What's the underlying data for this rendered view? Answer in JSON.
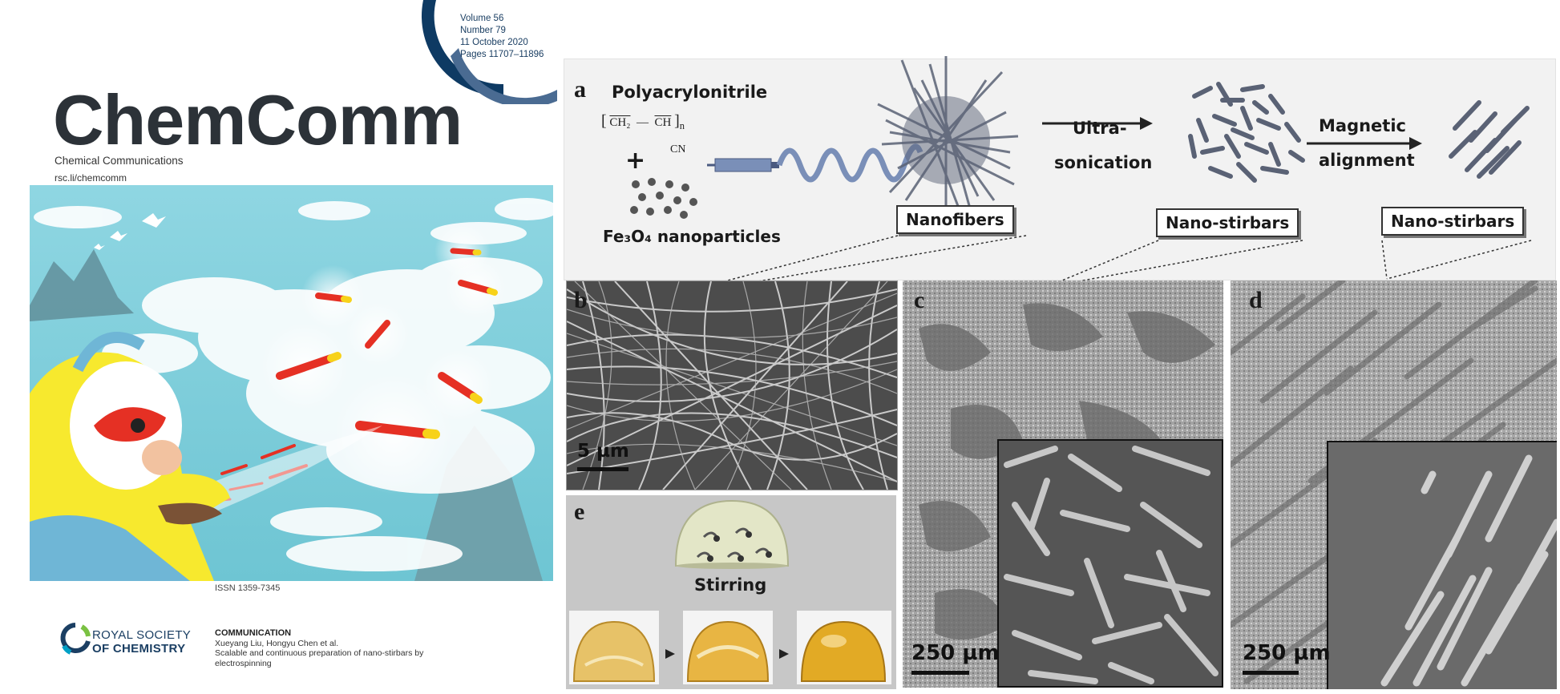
{
  "issue": {
    "volume": "Volume 56",
    "number": "Number 79",
    "date": "11 October 2020",
    "pages": "Pages 11707–11896"
  },
  "journal": {
    "name": "ChemComm",
    "subtitle": "Chemical Communications",
    "url": "rsc.li/chemcomm",
    "issn": "ISSN 1359-7345"
  },
  "publisher": {
    "line1": "ROYAL SOCIETY",
    "line2": "OF CHEMISTRY"
  },
  "article": {
    "type": "COMMUNICATION",
    "authors": "Xueyang Liu, Hongyu Chen et al.",
    "title": "Scalable and continuous preparation of nano-stirbars by electrospinning"
  },
  "figure": {
    "panel_a": {
      "label": "a",
      "polymer": "Polyacrylonitrile",
      "plus": "+",
      "formula_ch2": "CH₂",
      "formula_ch": "CH",
      "formula_cn": "CN",
      "formula_n": "n",
      "nanoparticles": "Fe₃O₄ nanoparticles",
      "step1_line1": "Ultra-",
      "step1_line2": "sonication",
      "step2_line1": "Magnetic",
      "step2_line2": "alignment",
      "box1": "Nanofibers",
      "box2": "Nano-stirbars",
      "box3": "Nano-stirbars"
    },
    "panel_b": {
      "label": "b",
      "scale": "5 µm"
    },
    "panel_c": {
      "label": "c",
      "scale": "250 µm"
    },
    "panel_d": {
      "label": "d",
      "scale": "250 µm"
    },
    "panel_e": {
      "label": "e",
      "caption": "Stirring"
    },
    "colors": {
      "rsc_blue": "#1b3f63",
      "stirbar_red": "#e53024",
      "stirbar_yellow": "#f7d21a",
      "sky": "#7fd0dc"
    }
  }
}
